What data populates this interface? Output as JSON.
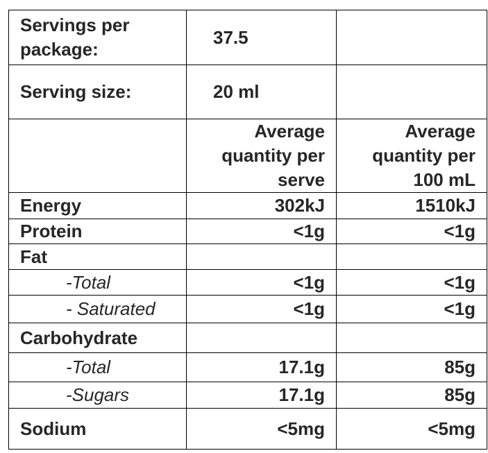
{
  "table": {
    "rows": [
      [
        [
          "Servings per",
          "package:"
        ],
        "37.5",
        null
      ],
      [
        "Serving size:",
        "20 ml",
        null
      ],
      [
        null,
        [
          "Average",
          "quantity per",
          "serve"
        ],
        [
          "Average",
          "quantity per",
          "100 mL"
        ]
      ],
      [
        "Energy",
        "302kJ",
        "1510kJ"
      ],
      [
        "Protein",
        "<1g",
        "<1g"
      ],
      [
        "Fat",
        null,
        null
      ],
      [
        "-Total",
        "<1g",
        "<1g"
      ],
      [
        "- Saturated",
        "<1g",
        "<1g"
      ],
      [
        "Carbohydrate",
        null,
        null
      ],
      [
        "-Total",
        "17.1g",
        "85g"
      ],
      [
        "-Sugars",
        "17.1g",
        "85g"
      ],
      [
        "Sodium",
        "<5mg",
        "<5mg"
      ]
    ]
  }
}
